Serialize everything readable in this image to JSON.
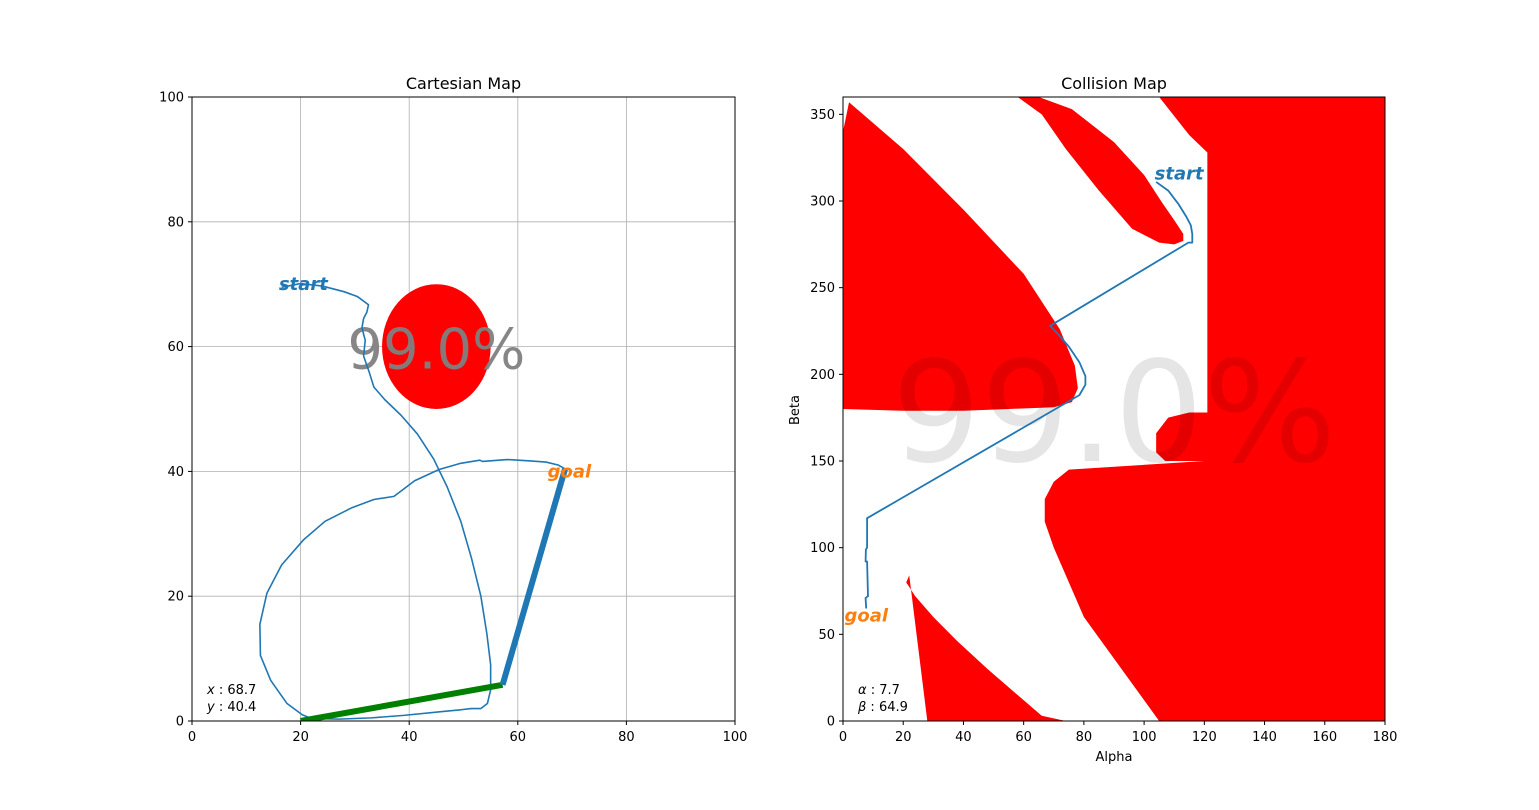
{
  "chart_data": [
    {
      "type": "line",
      "title": "Cartesian Map",
      "xlabel": "",
      "ylabel": "",
      "xlim": [
        0,
        100
      ],
      "ylim": [
        0,
        100
      ],
      "xticks": [
        0,
        20,
        40,
        60,
        80,
        100
      ],
      "yticks": [
        0,
        20,
        40,
        60,
        80,
        100
      ],
      "grid": true,
      "overlay_text": "99.0%",
      "obstacle": {
        "shape": "ellipse",
        "center": [
          45,
          60
        ],
        "radii": [
          10,
          10
        ],
        "color": "#ff0000"
      },
      "arm": {
        "base": [
          20,
          0
        ],
        "elbow": [
          57.2,
          5.8
        ],
        "tip": [
          68.7,
          40.4
        ],
        "link1_color": "#008000",
        "link2_color": "#1f77b4"
      },
      "labels": [
        {
          "text": "start",
          "x": 16,
          "y": 70,
          "color": "#1f77b4"
        },
        {
          "text": "goal",
          "x": 65.5,
          "y": 40,
          "color": "#ff7f0e"
        }
      ],
      "readout": [
        {
          "name": "x",
          "value": "68.7"
        },
        {
          "name": "y",
          "value": "40.4"
        }
      ],
      "series": [
        {
          "name": "",
          "color": "#1f77b4",
          "x": [
            16.5,
            20,
            24,
            28,
            30.5,
            32.5,
            32.2,
            31.6,
            31.3,
            31.9,
            31.6,
            32.6,
            33.5,
            35.5,
            38.5,
            41.5,
            44.5,
            47,
            49.5,
            51.5,
            53.2,
            54.3,
            55,
            55,
            54.4,
            53.2,
            51.4,
            49.5,
            47,
            39,
            33,
            27,
            22,
            20.3,
            17.5,
            14.5,
            12.6,
            12.5,
            13.8,
            16.5,
            20.5,
            24.5,
            29.5,
            33.5,
            37.2,
            41,
            45.5,
            49.5,
            53,
            53.5,
            58,
            62,
            65.2,
            67.5,
            68.7
          ],
          "y": [
            69.5,
            70.1,
            69.7,
            68.8,
            68.0,
            66.7,
            65.5,
            64.5,
            63.0,
            61.0,
            58.5,
            56.0,
            53.5,
            51.5,
            49.0,
            46.0,
            42.0,
            37.5,
            32.0,
            26.0,
            20.0,
            14.0,
            9.0,
            5.0,
            2.8,
            2.0,
            2.0,
            1.8,
            1.6,
            0.9,
            0.5,
            0.3,
            0.4,
            1.0,
            2.8,
            6.5,
            10.5,
            15.5,
            20.5,
            25.0,
            29.0,
            32.0,
            34.2,
            35.5,
            36.0,
            38.5,
            40.3,
            41.3,
            41.8,
            41.6,
            41.9,
            41.7,
            41.5,
            41.0,
            40.4
          ]
        }
      ]
    },
    {
      "type": "heatmap",
      "title": "Collision Map",
      "xlabel": "Alpha",
      "ylabel": "Beta",
      "xlim": [
        0,
        180
      ],
      "ylim": [
        0,
        360
      ],
      "xticks": [
        0,
        20,
        40,
        60,
        80,
        100,
        120,
        140,
        160,
        180
      ],
      "yticks": [
        0,
        50,
        100,
        150,
        200,
        250,
        300,
        350
      ],
      "grid": false,
      "overlay_text": "99.0%",
      "obstacle_color": "#ff0000",
      "free_color": "#ffffff",
      "regions": [
        {
          "name": "upper-left-band",
          "alpha": [
            0,
            0,
            2,
            20,
            40,
            60,
            72,
            77,
            78,
            76,
            70,
            55,
            40,
            20,
            0
          ],
          "beta": [
            180,
            340,
            357,
            330,
            295,
            258,
            226,
            205,
            192,
            184,
            181,
            180,
            179,
            179,
            180
          ]
        },
        {
          "name": "upper-lobe",
          "alpha": [
            58,
            65,
            76,
            90,
            100,
            106,
            110,
            113,
            113,
            110,
            105,
            96,
            85,
            74,
            66
          ],
          "beta": [
            360,
            360,
            353,
            334,
            315,
            299,
            289,
            281,
            277,
            275,
            276,
            284,
            306,
            330,
            350
          ]
        },
        {
          "name": "right-block",
          "alpha": [
            105,
            180,
            180,
            155,
            105,
            80,
            70,
            67,
            67,
            70,
            75,
            120,
            107,
            104,
            104,
            108,
            115,
            121,
            121,
            115
          ],
          "beta": [
            360,
            360,
            0,
            0,
            0,
            60,
            100,
            115,
            128,
            138,
            145,
            150,
            150,
            155,
            166,
            175,
            178,
            178,
            328,
            338
          ]
        },
        {
          "name": "lower-lobe",
          "alpha": [
            22,
            21,
            24,
            30,
            38,
            48,
            58,
            66,
            74,
            77,
            72,
            62,
            50,
            38,
            28
          ],
          "beta": [
            84,
            80,
            72,
            60,
            46,
            30,
            15,
            3,
            0,
            0,
            0,
            0,
            0,
            0,
            0
          ]
        }
      ],
      "labels": [
        {
          "text": "start",
          "x": 103.5,
          "y": 316,
          "color": "#1f77b4"
        },
        {
          "text": "goal",
          "x": 0.5,
          "y": 61,
          "color": "#ff7f0e"
        }
      ],
      "readout": [
        {
          "name": "α",
          "value": "7.7"
        },
        {
          "name": "β",
          "value": "64.9"
        }
      ],
      "series": [
        {
          "name": "",
          "color": "#1f77b4",
          "x": [
            104,
            108,
            111.5,
            114,
            115.5,
            116,
            116,
            114.7,
            68.8,
            71.5,
            75,
            78.5,
            80.5,
            80.5,
            78.5,
            8,
            8,
            7.6,
            7.5,
            8,
            8.3,
            7.5,
            7.7
          ],
          "y": [
            311,
            306,
            298,
            291,
            286,
            281,
            276,
            276,
            228,
            223,
            216,
            207,
            199,
            194,
            188,
            117,
            100,
            99,
            92,
            92,
            72,
            71,
            64.9
          ]
        }
      ]
    }
  ]
}
